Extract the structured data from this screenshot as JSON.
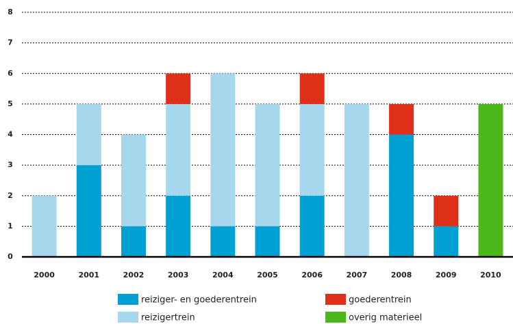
{
  "chart_data": {
    "type": "stacked_bar",
    "categories": [
      "2000",
      "2001",
      "2002",
      "2003",
      "2004",
      "2005",
      "2006",
      "2007",
      "2008",
      "2009",
      "2010"
    ],
    "series": [
      {
        "name": "reiziger- en goederentrein",
        "color": "#00a0d3",
        "values": [
          0,
          3,
          1,
          2,
          1,
          1,
          2,
          0,
          4,
          1,
          0
        ]
      },
      {
        "name": "reizigertrein",
        "color": "#a6d7ed",
        "values": [
          2,
          2,
          3,
          3,
          5,
          4,
          3,
          5,
          0,
          0,
          0
        ]
      },
      {
        "name": "goederentrein",
        "color": "#e1301a",
        "values": [
          0,
          0,
          0,
          1,
          0,
          0,
          1,
          0,
          1,
          1,
          0
        ]
      },
      {
        "name": "overig materieel",
        "color": "#4db81a",
        "values": [
          0,
          0,
          0,
          0,
          0,
          0,
          0,
          0,
          0,
          0,
          5
        ]
      }
    ],
    "ylim": [
      0,
      8
    ],
    "yticks": [
      0,
      1,
      2,
      3,
      4,
      5,
      6,
      7,
      8
    ],
    "grid": true
  }
}
